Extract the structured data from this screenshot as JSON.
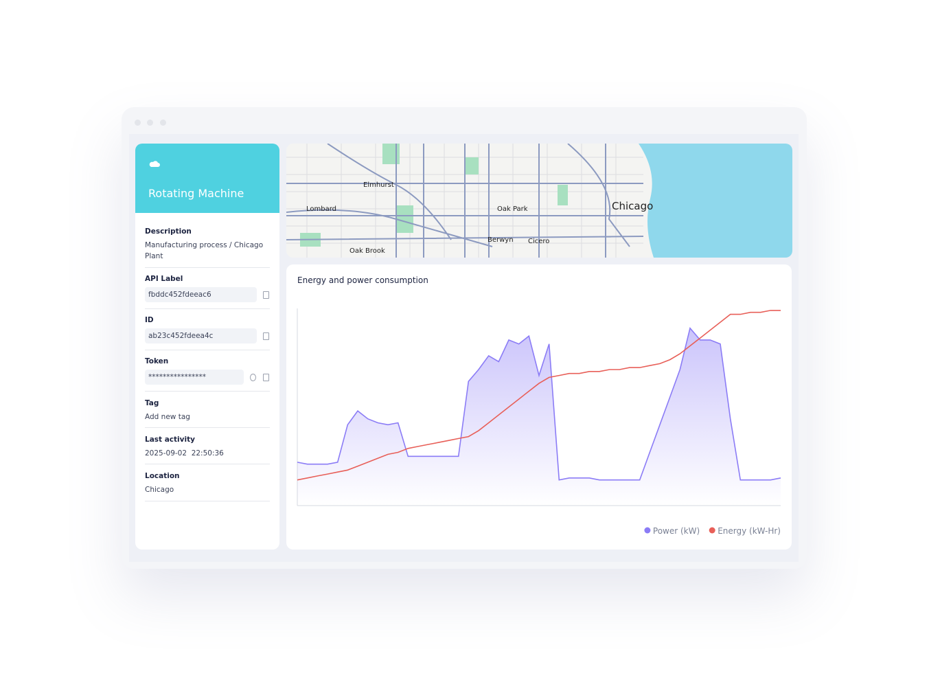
{
  "sidebar": {
    "title": "Rotating Machine",
    "fields": [
      {
        "label": "Description",
        "value": "Manufacturing process / Chicago Plant"
      },
      {
        "label": "API Label",
        "value": "fbddc452fdeeac6"
      },
      {
        "label": "ID",
        "value": "ab23c452fdeea4c"
      },
      {
        "label": "Token",
        "value": "****************"
      },
      {
        "label": "Tag",
        "value": "Add new tag"
      },
      {
        "label": "Last activity",
        "value": "2025-09-02  22:50:36"
      },
      {
        "label": "Location",
        "value": "Chicago"
      }
    ]
  },
  "map": {
    "labels": [
      "Elmhurst",
      "Lombard",
      "Oak Park",
      "Chicago",
      "Berwyn",
      "Cicero",
      "Oak Brook"
    ]
  },
  "chart_data": {
    "type": "area-line",
    "title": "Energy and power consumption",
    "ylim": [
      0,
      100
    ],
    "legend": "bottom-right",
    "series": [
      {
        "name": "Power (kW)",
        "color": "#8b7cf6",
        "values": [
          22,
          21,
          21,
          21,
          22,
          41,
          48,
          44,
          42,
          41,
          42,
          25,
          25,
          25,
          25,
          25,
          25,
          63,
          69,
          76,
          73,
          84,
          82,
          86,
          66,
          82,
          13,
          14,
          14,
          14,
          13,
          13,
          13,
          13,
          13,
          27,
          41,
          55,
          69,
          90,
          84,
          84,
          82,
          44,
          13,
          13,
          13,
          13,
          14
        ]
      },
      {
        "name": "Energy (kW-Hr)",
        "color": "#e85f58",
        "values": [
          13,
          14,
          15,
          16,
          17,
          18,
          20,
          22,
          24,
          26,
          27,
          29,
          30,
          31,
          32,
          33,
          34,
          35,
          38,
          42,
          46,
          50,
          54,
          58,
          62,
          65,
          66,
          67,
          67,
          68,
          68,
          69,
          69,
          70,
          70,
          71,
          72,
          74,
          77,
          81,
          85,
          89,
          93,
          97,
          97,
          98,
          98,
          99,
          99
        ]
      }
    ]
  }
}
